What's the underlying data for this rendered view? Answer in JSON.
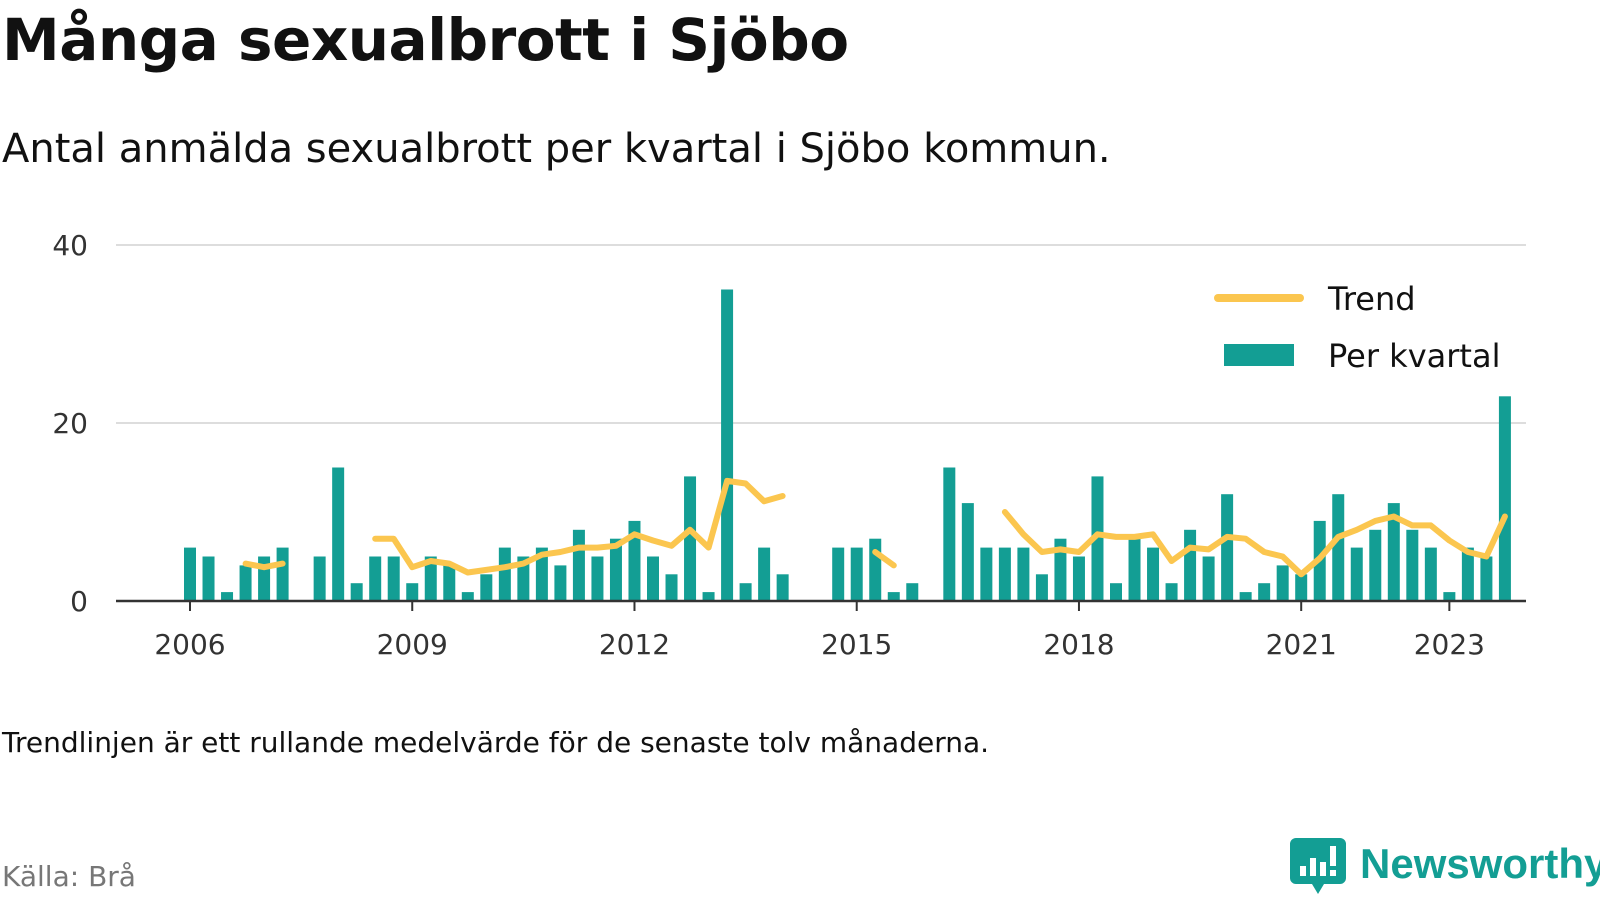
{
  "header": {
    "title": "Många sexualbrott i Sjöbo",
    "subtitle": "Antal anmälda sexualbrott per kvartal i Sjöbo kommun."
  },
  "footer": {
    "note": "Trendlinjen är ett rullande medelvärde för de senaste tolv månaderna.",
    "source": "Källa: Brå",
    "brand": "Newsworthy"
  },
  "colors": {
    "bar": "#139e94",
    "trend": "#fbc64f",
    "grid": "#dddddd",
    "axis": "#333333",
    "brand": "#139e94"
  },
  "chart_data": {
    "type": "bar",
    "x_start": "2006-Q1",
    "ylim": [
      0,
      40
    ],
    "y_ticks": [
      0,
      20,
      40
    ],
    "x_ticks": [
      "2006",
      "2009",
      "2012",
      "2015",
      "2018",
      "2021",
      "2023"
    ],
    "grid": true,
    "legend_position": "top-right",
    "series": [
      {
        "name": "Per kvartal",
        "kind": "bar",
        "values": [
          6,
          5,
          1,
          4,
          5,
          6,
          null,
          5,
          15,
          2,
          5,
          5,
          2,
          5,
          4,
          1,
          3,
          6,
          5,
          6,
          4,
          8,
          5,
          7,
          9,
          5,
          3,
          14,
          1,
          35,
          2,
          6,
          3,
          null,
          null,
          6,
          6,
          7,
          1,
          2,
          null,
          15,
          11,
          6,
          6,
          6,
          3,
          7,
          5,
          14,
          2,
          7,
          6,
          2,
          8,
          5,
          12,
          1,
          2,
          4,
          3,
          9,
          12,
          6,
          8,
          11,
          8,
          6,
          1,
          6,
          5,
          23
        ]
      },
      {
        "name": "Trend",
        "kind": "line",
        "values": [
          null,
          null,
          null,
          4.2,
          3.8,
          4.2,
          null,
          null,
          null,
          null,
          7,
          7,
          3.8,
          4.5,
          4.2,
          3.2,
          3.5,
          3.8,
          4.2,
          5.2,
          5.5,
          6,
          6,
          6.2,
          7.5,
          6.8,
          6.2,
          8,
          6,
          13.5,
          13.2,
          11.2,
          11.8,
          null,
          null,
          null,
          null,
          5.5,
          4,
          null,
          null,
          null,
          null,
          null,
          10,
          7.5,
          5.5,
          5.8,
          5.5,
          7.5,
          7.2,
          7.2,
          7.5,
          4.5,
          6,
          5.8,
          7.2,
          7,
          5.5,
          5,
          3,
          4.8,
          7.2,
          8,
          9,
          9.5,
          8.5,
          8.5,
          6.8,
          5.5,
          5,
          9.5
        ]
      }
    ]
  }
}
